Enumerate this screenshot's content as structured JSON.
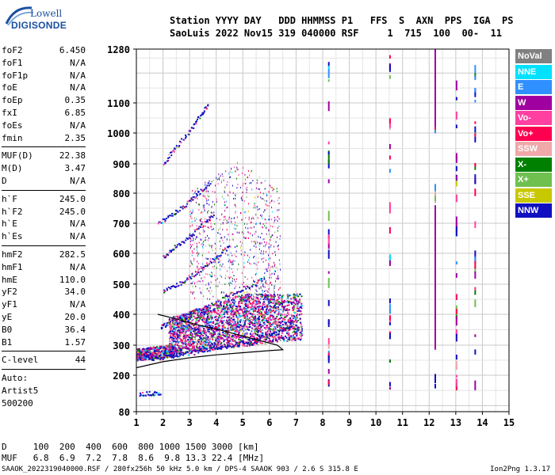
{
  "logo": {
    "line1": "Lowell",
    "line2": "DIGISONDE"
  },
  "header": {
    "line1": "Station YYYY DAY   DDD HHMMSS P1   FFS  S  AXN  PPS  IGA  PS",
    "line2": "SaoLuis 2022 Nov15 319 040000 RSF     1  715  100  00-  11"
  },
  "params_group1": [
    {
      "name": "foF2",
      "value": "6.450"
    },
    {
      "name": "foF1",
      "value": "N/A"
    },
    {
      "name": "foF1p",
      "value": "N/A"
    },
    {
      "name": "foE",
      "value": "N/A"
    },
    {
      "name": "foEp",
      "value": "0.35"
    },
    {
      "name": "fxI",
      "value": "6.85"
    },
    {
      "name": "foEs",
      "value": "N/A"
    },
    {
      "name": "fmin",
      "value": "2.35"
    }
  ],
  "params_group2": [
    {
      "name": "MUF(D)",
      "value": "22.38"
    },
    {
      "name": "M(D)",
      "value": "3.47"
    },
    {
      "name": "D",
      "value": "N/A"
    }
  ],
  "params_group3": [
    {
      "name": "h`F",
      "value": "245.0"
    },
    {
      "name": "h`F2",
      "value": "245.0"
    },
    {
      "name": "h`E",
      "value": "N/A"
    },
    {
      "name": "h`Es",
      "value": "N/A"
    }
  ],
  "params_group4": [
    {
      "name": "hmF2",
      "value": "282.5"
    },
    {
      "name": "hmF1",
      "value": "N/A"
    },
    {
      "name": "hmE",
      "value": "110.0"
    },
    {
      "name": "yF2",
      "value": "34.0"
    },
    {
      "name": "yF1",
      "value": "N/A"
    },
    {
      "name": "yE",
      "value": "20.0"
    },
    {
      "name": "B0",
      "value": "36.4"
    },
    {
      "name": "B1",
      "value": "1.57"
    }
  ],
  "clevel": {
    "name": "C-level",
    "value": "44"
  },
  "auto": {
    "label": "Auto:",
    "artist": "Artist5",
    "code": "500200"
  },
  "legend": [
    {
      "label": "NoVal",
      "color": "#808080"
    },
    {
      "label": "NNE",
      "color": "#00e0ff"
    },
    {
      "label": "E",
      "color": "#3090ff"
    },
    {
      "label": "W",
      "color": "#a000a0"
    },
    {
      "label": "Vo-",
      "color": "#ff40a0"
    },
    {
      "label": "Vo+",
      "color": "#ff0050"
    },
    {
      "label": "SSW",
      "color": "#f0a8a8"
    },
    {
      "label": "X-",
      "color": "#008000"
    },
    {
      "label": "X+",
      "color": "#70c050"
    },
    {
      "label": "SSE",
      "color": "#c8c800"
    },
    {
      "label": "NNW",
      "color": "#1010c0"
    }
  ],
  "footer": {
    "d_line": "D     100  200  400  600  800 1000 1500 3000 [km]",
    "muf_line": "MUF   6.8  6.9  7.2  7.8  8.6  9.8 13.3 22.4 [MHz]",
    "info": "SAAOK_2022319040000.RSF / 280fx256h 50 kHz 5.0 km / DPS-4 SAAOK 903 / 2.6 S 315.8 E",
    "version": "Ion2Png 1.3.17"
  },
  "chart_data": {
    "type": "scatter",
    "x_ticks": [
      "1",
      "2",
      "3",
      "4",
      "5",
      "6",
      "7",
      "8",
      "9",
      "10",
      "11",
      "12",
      "13",
      "14",
      "15"
    ],
    "y_ticks": [
      "80",
      "200",
      "300",
      "400",
      "500",
      "600",
      "700",
      "800",
      "900",
      "1000",
      "1100",
      "1280"
    ],
    "xlim": [
      1,
      15
    ],
    "ylim": [
      80,
      1280
    ],
    "grid": true,
    "traces": [
      {
        "name": "F-trace-1st-hop",
        "points": [
          [
            1.0,
            255
          ],
          [
            1.5,
            258
          ],
          [
            2.0,
            262
          ],
          [
            2.5,
            268
          ],
          [
            3.0,
            275
          ],
          [
            3.5,
            285
          ],
          [
            4.0,
            292
          ],
          [
            4.5,
            300
          ],
          [
            5.0,
            310
          ],
          [
            5.5,
            322
          ],
          [
            6.0,
            335
          ],
          [
            6.5,
            350
          ],
          [
            6.8,
            365
          ]
        ]
      },
      {
        "name": "F-trace-2nd-hop",
        "points": [
          [
            1.9,
            360
          ],
          [
            2.2,
            375
          ],
          [
            2.8,
            395
          ],
          [
            3.4,
            420
          ],
          [
            4.0,
            440
          ],
          [
            4.6,
            470
          ],
          [
            5.2,
            495
          ],
          [
            5.8,
            520
          ]
        ]
      },
      {
        "name": "F-trace-3rd-hop",
        "points": [
          [
            2.0,
            480
          ],
          [
            2.5,
            500
          ],
          [
            3.0,
            525
          ],
          [
            3.5,
            555
          ],
          [
            4.0,
            590
          ],
          [
            4.5,
            625
          ]
        ]
      },
      {
        "name": "F-trace-4th-hop",
        "points": [
          [
            2.0,
            590
          ],
          [
            2.4,
            620
          ],
          [
            2.9,
            650
          ],
          [
            3.4,
            690
          ],
          [
            3.9,
            730
          ]
        ]
      },
      {
        "name": "F-trace-5th-hop",
        "points": [
          [
            1.8,
            700
          ],
          [
            2.3,
            730
          ],
          [
            2.8,
            760
          ],
          [
            3.3,
            800
          ],
          [
            3.8,
            840
          ]
        ]
      },
      {
        "name": "F-trace-6th-hop",
        "points": [
          [
            2.0,
            900
          ],
          [
            2.4,
            950
          ],
          [
            2.9,
            1000
          ],
          [
            3.3,
            1050
          ],
          [
            3.7,
            1100
          ]
        ]
      },
      {
        "name": "low-echo",
        "points": [
          [
            1.1,
            140
          ],
          [
            1.5,
            142
          ],
          [
            1.9,
            145
          ]
        ]
      }
    ],
    "vertical_interference_mhz": [
      8.2,
      10.5,
      12.2,
      13.0,
      13.7
    ],
    "profile_curve": [
      [
        1.0,
        225
      ],
      [
        2.0,
        245
      ],
      [
        3.0,
        258
      ],
      [
        4.0,
        268
      ],
      [
        5.0,
        275
      ],
      [
        6.0,
        282
      ],
      [
        6.5,
        285
      ],
      [
        6.3,
        300
      ],
      [
        5.2,
        325
      ],
      [
        4.2,
        348
      ],
      [
        3.2,
        368
      ],
      [
        2.5,
        385
      ],
      [
        1.8,
        400
      ]
    ]
  }
}
